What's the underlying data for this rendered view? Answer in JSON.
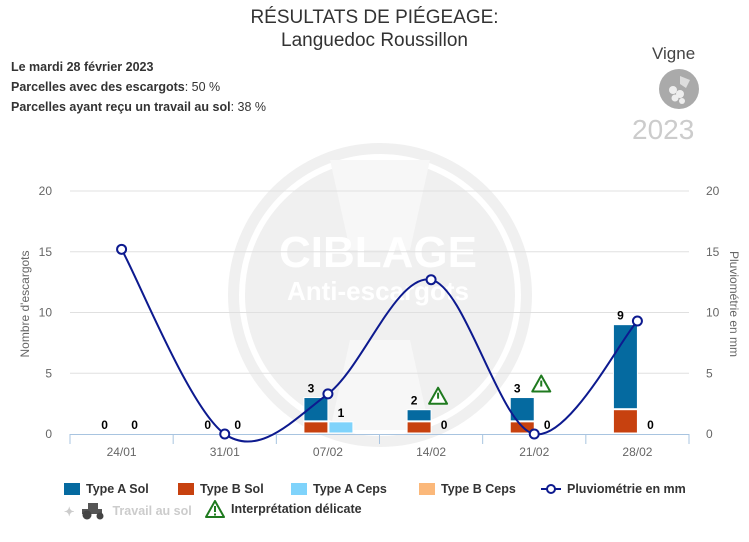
{
  "header": {
    "title_line1": "RÉSULTATS DE PIÉGEAGE:",
    "title_line2": "Languedoc Roussillon",
    "date": "Le mardi 28 février 2023",
    "stat1_label": "Parcelles avec des escargots",
    "stat1_value": ": 50 %",
    "stat2_label": "Parcelles ayant reçu un travail au sol",
    "stat2_value": ": 38 %",
    "crop": "Vigne",
    "year": "2023"
  },
  "watermark": {
    "line1": "CIBLAGE",
    "line2": "Anti-escargots"
  },
  "chart_data": {
    "type": "bar",
    "categories": [
      "24/01",
      "31/01",
      "07/02",
      "14/02",
      "21/02",
      "28/02"
    ],
    "ylabel": "Nombre d'escargots",
    "y2label": "Pluviométrie en mm",
    "ylim": [
      0,
      20
    ],
    "y2lim": [
      0,
      20
    ],
    "yticks": [
      "0",
      "5",
      "10",
      "15",
      "20"
    ],
    "series": [
      {
        "name": "Type A Sol",
        "stack": "sol",
        "color": "#056aa0",
        "values": [
          0,
          0,
          2,
          1,
          2,
          7
        ]
      },
      {
        "name": "Type B Sol",
        "stack": "sol",
        "color": "#c7410f",
        "values": [
          0,
          0,
          1,
          1,
          1,
          2
        ]
      },
      {
        "name": "Type A Ceps",
        "stack": "ceps",
        "color": "#7fd3fb",
        "values": [
          0,
          0,
          1,
          0,
          0,
          0
        ]
      },
      {
        "name": "Type B Ceps",
        "stack": "ceps",
        "color": "#fbb87a",
        "values": [
          0,
          0,
          0,
          0,
          0,
          0
        ]
      },
      {
        "name": "Pluviométrie en mm",
        "type": "spline",
        "axis": "right",
        "color": "#0d1a8f",
        "values": [
          15.2,
          0,
          3.3,
          12.7,
          0,
          9.3
        ]
      }
    ],
    "stack_labels": {
      "sol": [
        "0",
        "0",
        "3",
        "2",
        "3",
        "9"
      ],
      "ceps": [
        "0",
        "0",
        "1",
        "0",
        "0",
        "0"
      ]
    },
    "warnings": [
      false,
      false,
      false,
      true,
      true,
      false
    ],
    "legend": {
      "travail": "Travail au sol",
      "warning": "Interprétation délicate"
    }
  }
}
